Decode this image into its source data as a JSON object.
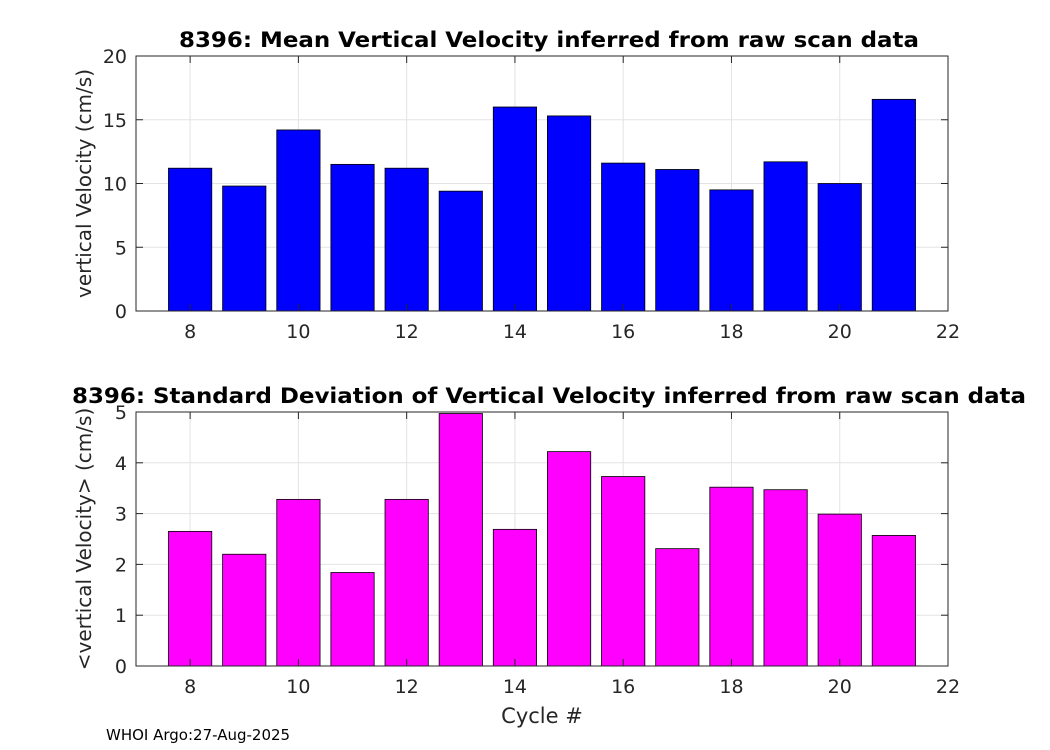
{
  "chart_data": [
    {
      "type": "bar",
      "title": "8396: Mean Vertical Velocity inferred from raw scan data",
      "xlabel": "",
      "ylabel": "vertical Velocity (cm/s)",
      "x": [
        8,
        9,
        10,
        11,
        12,
        13,
        14,
        15,
        16,
        17,
        18,
        19,
        20,
        21
      ],
      "values": [
        11.2,
        9.8,
        14.2,
        11.5,
        11.2,
        9.4,
        16.0,
        15.3,
        11.6,
        11.1,
        9.5,
        11.7,
        10.0,
        16.6
      ],
      "xlim": [
        7,
        22
      ],
      "ylim": [
        0,
        20
      ],
      "xticks": [
        8,
        10,
        12,
        14,
        16,
        18,
        20,
        22
      ],
      "yticks": [
        0,
        5,
        10,
        15,
        20
      ],
      "bar_color": "#0000ff",
      "grid": true
    },
    {
      "type": "bar",
      "title": "8396: Standard Deviation of Vertical Velocity inferred from raw scan data",
      "xlabel": "Cycle #",
      "ylabel": "<vertical Velocity> (cm/s)",
      "x": [
        8,
        9,
        10,
        11,
        12,
        13,
        14,
        15,
        16,
        17,
        18,
        19,
        20,
        21
      ],
      "values": [
        2.65,
        2.2,
        3.28,
        1.84,
        3.28,
        4.97,
        2.69,
        4.22,
        3.73,
        2.31,
        3.52,
        3.47,
        2.99,
        2.57
      ],
      "xlim": [
        7,
        22
      ],
      "ylim": [
        0,
        5
      ],
      "xticks": [
        8,
        10,
        12,
        14,
        16,
        18,
        20,
        22
      ],
      "yticks": [
        0,
        1,
        2,
        3,
        4,
        5
      ],
      "bar_color": "#ff00ff",
      "grid": true
    }
  ],
  "footer": "WHOI Argo:27-Aug-2025"
}
